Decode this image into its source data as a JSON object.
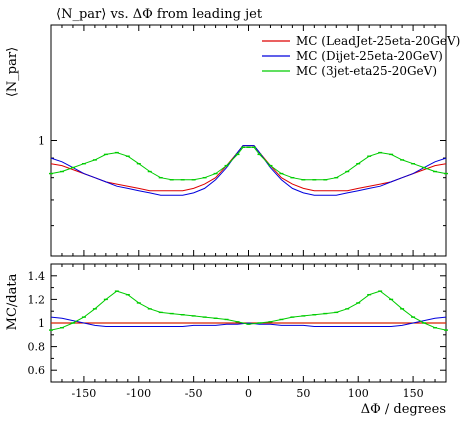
{
  "title": "⟨N_par⟩ vs. ΔΦ from leading jet",
  "main_ylabel": "⟨N_par⟩",
  "ratio_ylabel": "MC/data",
  "xlabel": "ΔΦ / degrees",
  "chart_data": [
    {
      "type": "line",
      "panel": "main",
      "title": "⟨N_par⟩ vs. ΔΦ from leading jet",
      "ylabel": "⟨N_par⟩",
      "xlabel": "",
      "xlim": [
        -180,
        180
      ],
      "ylim": [
        0.5,
        2.0
      ],
      "yscale": "log",
      "ytick_labels": [
        "1"
      ],
      "legend_position": "top-right",
      "x": [
        -180,
        -170,
        -160,
        -150,
        -140,
        -130,
        -120,
        -110,
        -100,
        -90,
        -80,
        -70,
        -60,
        -50,
        -40,
        -30,
        -20,
        -10,
        -5,
        0,
        5,
        10,
        20,
        30,
        40,
        50,
        60,
        70,
        80,
        90,
        100,
        110,
        120,
        130,
        140,
        150,
        160,
        170,
        180
      ],
      "series": [
        {
          "name": "MC (LeadJet-25eta-20GeV)",
          "color": "#dd0000",
          "values": [
            0.87,
            0.86,
            0.84,
            0.82,
            0.8,
            0.78,
            0.77,
            0.76,
            0.75,
            0.74,
            0.74,
            0.74,
            0.74,
            0.75,
            0.77,
            0.8,
            0.86,
            0.93,
            0.97,
            0.97,
            0.97,
            0.93,
            0.86,
            0.8,
            0.77,
            0.75,
            0.74,
            0.74,
            0.74,
            0.74,
            0.75,
            0.76,
            0.77,
            0.78,
            0.8,
            0.82,
            0.84,
            0.86,
            0.87
          ]
        },
        {
          "name": "MC (Dijet-25eta-20GeV)",
          "color": "#0000dd",
          "values": [
            0.9,
            0.88,
            0.85,
            0.82,
            0.8,
            0.78,
            0.76,
            0.75,
            0.74,
            0.73,
            0.72,
            0.72,
            0.72,
            0.73,
            0.75,
            0.79,
            0.85,
            0.93,
            0.97,
            0.97,
            0.97,
            0.93,
            0.85,
            0.79,
            0.75,
            0.73,
            0.72,
            0.72,
            0.72,
            0.73,
            0.74,
            0.75,
            0.76,
            0.78,
            0.8,
            0.82,
            0.85,
            0.88,
            0.9
          ]
        },
        {
          "name": "MC (3jet-eta25-20GeV)",
          "color": "#00cc00",
          "values": [
            0.82,
            0.83,
            0.85,
            0.87,
            0.89,
            0.92,
            0.93,
            0.91,
            0.87,
            0.83,
            0.8,
            0.79,
            0.79,
            0.79,
            0.8,
            0.82,
            0.86,
            0.92,
            0.96,
            0.96,
            0.96,
            0.92,
            0.86,
            0.82,
            0.8,
            0.79,
            0.79,
            0.79,
            0.8,
            0.83,
            0.87,
            0.91,
            0.93,
            0.92,
            0.89,
            0.87,
            0.85,
            0.83,
            0.82
          ]
        }
      ]
    },
    {
      "type": "line",
      "panel": "ratio",
      "ylabel": "MC/data",
      "xlabel": "ΔΦ / degrees",
      "xlim": [
        -180,
        180
      ],
      "ylim": [
        0.5,
        1.5
      ],
      "yticks": [
        0.6,
        0.8,
        1,
        1.2,
        1.4
      ],
      "ytick_labels": [
        "0.6",
        "0.8",
        "1",
        "1.2",
        "1.4"
      ],
      "xticks": [
        -150,
        -100,
        -50,
        0,
        50,
        100,
        150
      ],
      "xtick_labels": [
        "-150",
        "-100",
        "-50",
        "0",
        "50",
        "100",
        "150"
      ],
      "reference_line": {
        "y": 1,
        "color": "#c8b400"
      },
      "x": [
        -180,
        -170,
        -160,
        -150,
        -140,
        -130,
        -120,
        -110,
        -100,
        -90,
        -80,
        -70,
        -60,
        -50,
        -40,
        -30,
        -20,
        -10,
        0,
        10,
        20,
        30,
        40,
        50,
        60,
        70,
        80,
        90,
        100,
        110,
        120,
        130,
        140,
        150,
        160,
        170,
        180
      ],
      "series": [
        {
          "name": "MC (LeadJet-25eta-20GeV)",
          "color": "#dd0000",
          "values": [
            1.0,
            1.0,
            1.0,
            1.0,
            1.0,
            1.0,
            1.0,
            1.0,
            1.0,
            1.0,
            1.0,
            1.0,
            1.0,
            1.0,
            1.0,
            1.0,
            1.0,
            1.0,
            1.0,
            1.0,
            1.0,
            1.0,
            1.0,
            1.0,
            1.0,
            1.0,
            1.0,
            1.0,
            1.0,
            1.0,
            1.0,
            1.0,
            1.0,
            1.0,
            1.0,
            1.0,
            1.0
          ]
        },
        {
          "name": "MC (Dijet-25eta-20GeV)",
          "color": "#0000dd",
          "values": [
            1.05,
            1.04,
            1.02,
            1.0,
            0.98,
            0.97,
            0.97,
            0.97,
            0.97,
            0.97,
            0.97,
            0.97,
            0.97,
            0.98,
            0.98,
            0.98,
            0.99,
            0.99,
            1.0,
            0.99,
            0.99,
            0.98,
            0.98,
            0.98,
            0.97,
            0.97,
            0.97,
            0.97,
            0.97,
            0.97,
            0.97,
            0.97,
            0.98,
            1.0,
            1.02,
            1.04,
            1.05
          ]
        },
        {
          "name": "MC (3jet-eta25-20GeV)",
          "color": "#00cc00",
          "values": [
            0.94,
            0.96,
            1.0,
            1.05,
            1.12,
            1.2,
            1.27,
            1.24,
            1.17,
            1.12,
            1.09,
            1.08,
            1.07,
            1.06,
            1.05,
            1.04,
            1.03,
            1.01,
            0.99,
            1.0,
            1.01,
            1.03,
            1.05,
            1.06,
            1.07,
            1.08,
            1.09,
            1.12,
            1.17,
            1.24,
            1.27,
            1.2,
            1.12,
            1.05,
            1.0,
            0.96,
            0.94
          ]
        }
      ]
    }
  ]
}
